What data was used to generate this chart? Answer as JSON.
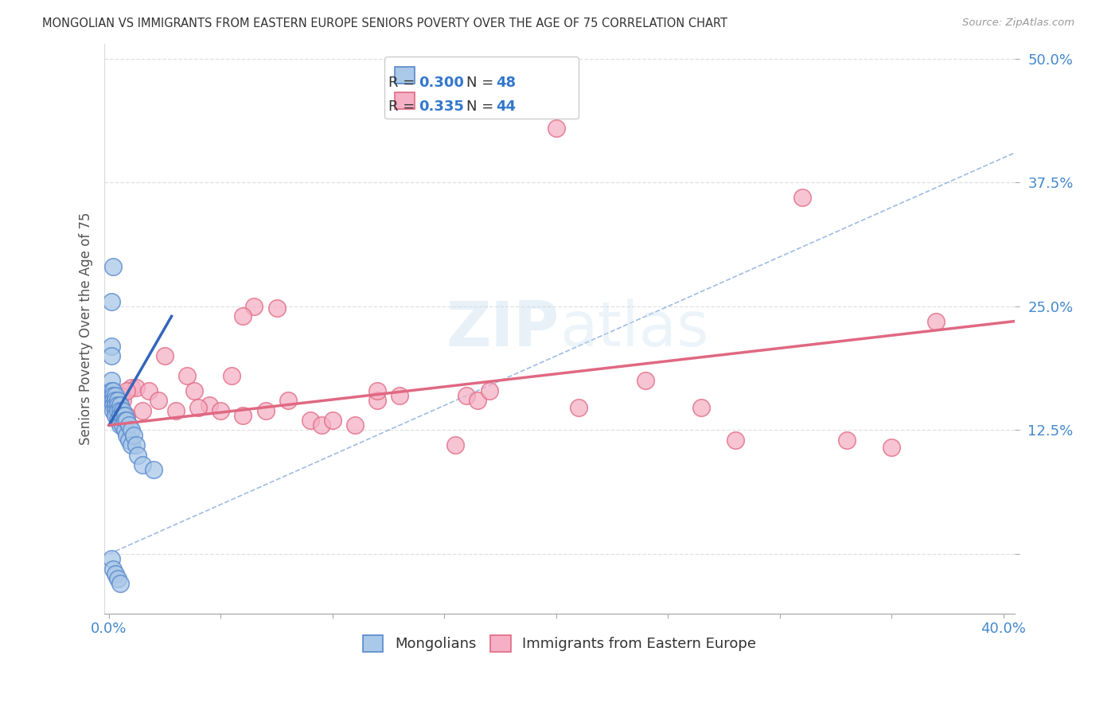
{
  "title": "MONGOLIAN VS IMMIGRANTS FROM EASTERN EUROPE SENIORS POVERTY OVER THE AGE OF 75 CORRELATION CHART",
  "source": "Source: ZipAtlas.com",
  "ylabel": "Seniors Poverty Over the Age of 75",
  "xlim": [
    -0.002,
    0.405
  ],
  "ylim": [
    -0.06,
    0.515
  ],
  "ytick_vals": [
    0.0,
    0.125,
    0.25,
    0.375,
    0.5
  ],
  "ytick_labels": [
    "",
    "12.5%",
    "25.0%",
    "37.5%",
    "50.0%"
  ],
  "xtick_vals": [
    0.0,
    0.05,
    0.1,
    0.15,
    0.2,
    0.25,
    0.3,
    0.35,
    0.4
  ],
  "watermark_zip": "ZIP",
  "watermark_atlas": "atlas",
  "legend_R1": "0.300",
  "legend_N1": "48",
  "legend_R2": "0.335",
  "legend_N2": "44",
  "blue_fill": "#aac8e8",
  "blue_edge": "#5588cc",
  "pink_fill": "#f5b0c5",
  "pink_edge": "#e06882",
  "blue_line_color": "#3366bb",
  "pink_line_color": "#e06882",
  "diag_line_color": "#88aadd",
  "blue_scatter_x": [
    0.001,
    0.001,
    0.001,
    0.001,
    0.002,
    0.002,
    0.002,
    0.002,
    0.002,
    0.003,
    0.003,
    0.003,
    0.003,
    0.003,
    0.004,
    0.004,
    0.004,
    0.004,
    0.005,
    0.005,
    0.005,
    0.005,
    0.006,
    0.006,
    0.006,
    0.007,
    0.007,
    0.007,
    0.008,
    0.008,
    0.009,
    0.009,
    0.01,
    0.01,
    0.011,
    0.012,
    0.013,
    0.015,
    0.002,
    0.001,
    0.001,
    0.002,
    0.003,
    0.004,
    0.005,
    0.001,
    0.001,
    0.02
  ],
  "blue_scatter_y": [
    0.175,
    0.165,
    0.16,
    0.155,
    0.165,
    0.16,
    0.155,
    0.15,
    0.145,
    0.16,
    0.155,
    0.15,
    0.145,
    0.14,
    0.155,
    0.15,
    0.145,
    0.135,
    0.15,
    0.145,
    0.14,
    0.13,
    0.145,
    0.14,
    0.13,
    0.14,
    0.135,
    0.125,
    0.135,
    0.12,
    0.13,
    0.115,
    0.125,
    0.11,
    0.12,
    0.11,
    0.1,
    0.09,
    0.29,
    0.255,
    -0.005,
    -0.015,
    -0.02,
    -0.025,
    -0.03,
    0.21,
    0.2,
    0.085
  ],
  "pink_scatter_x": [
    0.005,
    0.006,
    0.008,
    0.01,
    0.012,
    0.015,
    0.018,
    0.022,
    0.025,
    0.03,
    0.035,
    0.038,
    0.045,
    0.05,
    0.055,
    0.06,
    0.065,
    0.07,
    0.08,
    0.09,
    0.095,
    0.1,
    0.11,
    0.12,
    0.13,
    0.155,
    0.16,
    0.2,
    0.21,
    0.24,
    0.265,
    0.31,
    0.33,
    0.35,
    0.37,
    0.04,
    0.06,
    0.075,
    0.12,
    0.165,
    0.005,
    0.008,
    0.28,
    0.17
  ],
  "pink_scatter_y": [
    0.155,
    0.155,
    0.14,
    0.168,
    0.168,
    0.145,
    0.165,
    0.155,
    0.2,
    0.145,
    0.18,
    0.165,
    0.15,
    0.145,
    0.18,
    0.14,
    0.25,
    0.145,
    0.155,
    0.135,
    0.13,
    0.135,
    0.13,
    0.155,
    0.16,
    0.11,
    0.16,
    0.43,
    0.148,
    0.175,
    0.148,
    0.36,
    0.115,
    0.108,
    0.235,
    0.148,
    0.24,
    0.248,
    0.165,
    0.155,
    0.16,
    0.165,
    0.115,
    0.165
  ],
  "blue_trend": [
    0.0,
    0.13,
    0.028,
    0.24
  ],
  "pink_trend": [
    0.0,
    0.13,
    0.405,
    0.235
  ],
  "diag_line": [
    0.0,
    0.0,
    0.5,
    0.5
  ]
}
